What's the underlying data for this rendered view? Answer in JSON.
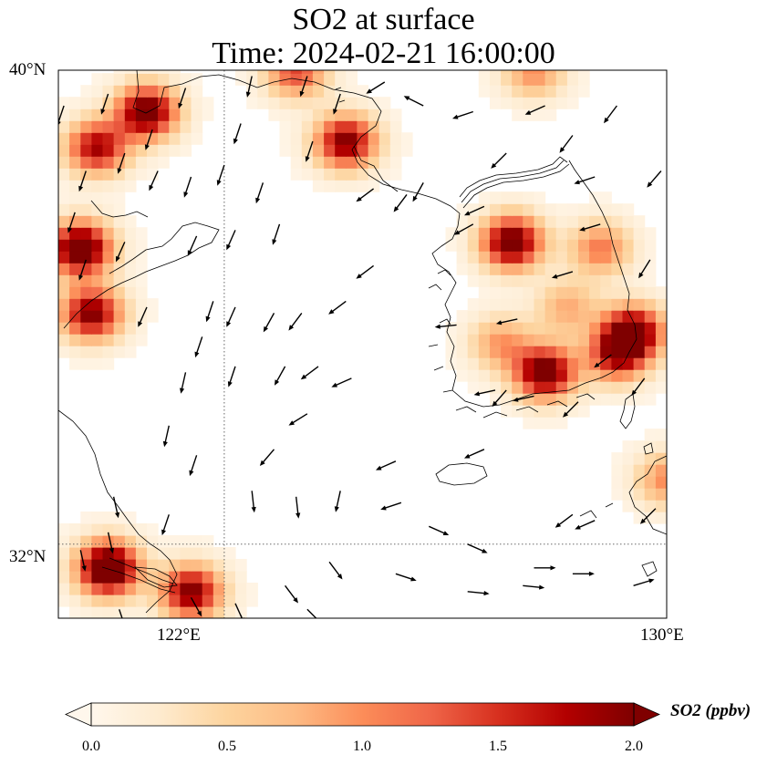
{
  "title": {
    "line1": "SO2 at surface",
    "line2": "Time: 2024-02-21 16:00:00"
  },
  "map": {
    "extent": {
      "lon_min": 119.0,
      "lon_max": 130.0,
      "lat_min": 30.75,
      "lat_max": 40.0
    },
    "lat_labels": [
      {
        "value": 40,
        "text": "40°N"
      },
      {
        "value": 32,
        "text": "32°N"
      }
    ],
    "lon_labels": [
      {
        "value": 122,
        "text": "122°E"
      },
      {
        "value": 130,
        "text": "130°E"
      }
    ],
    "gridlines": {
      "lon": [
        122
      ],
      "lat": [
        32
      ],
      "style": "dotted"
    },
    "field": "SO2 concentration (ppbv)",
    "colormap": "OrRd",
    "hotspots": [
      {
        "lon": 120.5,
        "lat": 39.2,
        "peak": 2.2
      },
      {
        "lon": 119.6,
        "lat": 38.6,
        "peak": 1.8
      },
      {
        "lon": 119.3,
        "lat": 36.9,
        "peak": 2.4
      },
      {
        "lon": 119.5,
        "lat": 35.8,
        "peak": 2.0
      },
      {
        "lon": 119.8,
        "lat": 31.5,
        "peak": 2.6
      },
      {
        "lon": 121.3,
        "lat": 31.1,
        "peak": 2.0
      },
      {
        "lon": 123.2,
        "lat": 39.9,
        "peak": 1.4
      },
      {
        "lon": 124.1,
        "lat": 38.7,
        "peak": 2.0
      },
      {
        "lon": 127.1,
        "lat": 37.0,
        "peak": 2.2
      },
      {
        "lon": 128.7,
        "lat": 36.9,
        "peak": 1.1
      },
      {
        "lon": 128.1,
        "lat": 35.9,
        "peak": 0.8
      },
      {
        "lon": 129.3,
        "lat": 35.5,
        "peak": 2.0
      },
      {
        "lon": 129.0,
        "lat": 35.1,
        "peak": 1.6
      },
      {
        "lon": 127.7,
        "lat": 34.8,
        "peak": 2.2
      },
      {
        "lon": 129.9,
        "lat": 33.0,
        "peak": 1.0
      },
      {
        "lon": 127.5,
        "lat": 39.9,
        "peak": 1.0
      },
      {
        "lon": 126.9,
        "lat": 35.3,
        "peak": 0.9
      }
    ],
    "wind_vectors": [
      [
        120.7,
        39.0,
        -0.3,
        -0.9
      ],
      [
        121.4,
        38.2,
        -0.3,
        -0.9
      ],
      [
        121.5,
        37.2,
        -0.4,
        -0.9
      ],
      [
        120.2,
        37.1,
        -0.4,
        -0.9
      ],
      [
        122.2,
        36.0,
        -0.4,
        -0.9
      ],
      [
        122.9,
        35.9,
        -0.5,
        -0.9
      ],
      [
        123.4,
        35.9,
        -0.6,
        -0.8
      ],
      [
        121.6,
        35.5,
        -0.3,
        -0.9
      ],
      [
        121.3,
        34.9,
        -0.2,
        -0.9
      ],
      [
        122.2,
        35.0,
        -0.3,
        -0.9
      ],
      [
        123.1,
        35.0,
        -0.5,
        -0.9
      ],
      [
        124.3,
        34.8,
        -0.9,
        -0.4
      ],
      [
        121.0,
        34.0,
        -0.2,
        -0.9
      ],
      [
        122.9,
        33.6,
        -0.6,
        -0.7
      ],
      [
        123.5,
        34.2,
        -0.8,
        -0.5
      ],
      [
        125.1,
        33.4,
        -0.9,
        -0.4
      ],
      [
        126.7,
        33.6,
        -0.9,
        -0.4
      ],
      [
        125.2,
        32.7,
        -0.9,
        -0.3
      ],
      [
        122.5,
        32.9,
        0.1,
        -0.9
      ],
      [
        123.3,
        32.8,
        0.1,
        -0.9
      ],
      [
        124.1,
        32.9,
        -0.2,
        -0.9
      ],
      [
        121.0,
        32.5,
        -0.3,
        -0.9
      ],
      [
        123.9,
        31.7,
        0.6,
        -0.8
      ],
      [
        125.7,
        32.3,
        0.9,
        -0.4
      ],
      [
        126.4,
        32.0,
        0.9,
        -0.4
      ],
      [
        125.1,
        31.5,
        0.9,
        -0.3
      ],
      [
        126.4,
        31.2,
        1.0,
        -0.1
      ],
      [
        127.4,
        31.3,
        1.0,
        -0.1
      ],
      [
        127.6,
        31.6,
        1.0,
        0.0
      ],
      [
        128.3,
        31.5,
        1.0,
        0.0
      ],
      [
        129.4,
        31.3,
        1.0,
        0.3
      ],
      [
        128.3,
        32.5,
        -0.8,
        -0.6
      ],
      [
        128.7,
        32.4,
        -0.9,
        -0.4
      ],
      [
        129.8,
        32.6,
        -0.7,
        -0.7
      ],
      [
        128.3,
        36.6,
        -1.0,
        -0.3
      ],
      [
        128.3,
        38.9,
        -0.6,
        -0.8
      ],
      [
        129.1,
        39.4,
        -0.6,
        -0.8
      ],
      [
        128.7,
        38.2,
        -0.9,
        -0.3
      ],
      [
        129.9,
        38.3,
        -0.6,
        -0.7
      ],
      [
        128.8,
        37.4,
        -1.0,
        -0.3
      ],
      [
        129.7,
        36.8,
        -0.5,
        -0.8
      ],
      [
        127.1,
        38.6,
        -0.7,
        -0.7
      ],
      [
        126.7,
        37.7,
        -0.9,
        -0.4
      ],
      [
        126.5,
        37.4,
        -0.9,
        -0.5
      ],
      [
        126.2,
        35.7,
        -1.0,
        -0.1
      ],
      [
        127.3,
        35.8,
        -0.9,
        -0.2
      ],
      [
        129.0,
        35.2,
        -0.8,
        -0.6
      ],
      [
        129.6,
        34.8,
        -0.6,
        -0.8
      ],
      [
        127.1,
        34.6,
        -0.6,
        -0.7
      ],
      [
        126.9,
        34.6,
        -0.9,
        -0.2
      ],
      [
        127.6,
        34.5,
        -0.9,
        -0.2
      ],
      [
        128.4,
        34.4,
        -0.7,
        -0.7
      ],
      [
        125.3,
        37.9,
        -0.6,
        -0.8
      ],
      [
        124.7,
        38.0,
        -0.8,
        -0.6
      ],
      [
        125.6,
        38.1,
        -0.5,
        -0.9
      ],
      [
        124.1,
        39.6,
        -0.3,
        -0.9
      ],
      [
        123.5,
        39.9,
        -0.3,
        -0.9
      ],
      [
        125.6,
        39.4,
        -0.8,
        0.4
      ],
      [
        126.5,
        39.3,
        -0.9,
        -0.3
      ],
      [
        127.8,
        39.4,
        -0.9,
        -0.4
      ],
      [
        124.7,
        36.7,
        -0.8,
        -0.6
      ],
      [
        124.2,
        36.1,
        -0.8,
        -0.6
      ],
      [
        123.7,
        35.0,
        -0.8,
        -0.6
      ],
      [
        121.8,
        36.1,
        -0.3,
        -0.9
      ],
      [
        120.8,
        38.3,
        -0.4,
        -0.9
      ],
      [
        120.2,
        38.6,
        -0.3,
        -0.9
      ],
      [
        122.2,
        37.3,
        -0.4,
        -0.9
      ],
      [
        123.0,
        37.4,
        -0.3,
        -0.9
      ],
      [
        122.0,
        38.4,
        -0.3,
        -0.9
      ],
      [
        122.7,
        38.1,
        -0.3,
        -0.9
      ],
      [
        122.3,
        39.1,
        -0.3,
        -0.9
      ],
      [
        120.6,
        36.0,
        -0.4,
        -0.9
      ],
      [
        119.5,
        38.3,
        -0.3,
        -0.9
      ],
      [
        119.3,
        37.6,
        -0.3,
        -0.9
      ],
      [
        119.5,
        36.8,
        -0.3,
        -0.9
      ],
      [
        121.4,
        31.1,
        0.5,
        -0.9
      ],
      [
        122.2,
        31.0,
        0.4,
        -0.9
      ],
      [
        123.1,
        31.3,
        0.6,
        -0.8
      ],
      [
        123.5,
        30.9,
        0.7,
        -0.7
      ],
      [
        122.3,
        30.8,
        0.3,
        -0.9
      ],
      [
        120.1,
        30.9,
        0.3,
        -0.9
      ],
      [
        119.4,
        31.9,
        0.2,
        -0.9
      ],
      [
        119.9,
        32.2,
        0.2,
        -0.9
      ],
      [
        120.0,
        32.8,
        0.2,
        -0.9
      ],
      [
        121.5,
        33.5,
        -0.3,
        -0.9
      ],
      [
        124.9,
        39.8,
        -0.8,
        -0.5
      ],
      [
        119.9,
        39.6,
        -0.3,
        -0.9
      ],
      [
        119.1,
        39.4,
        -0.3,
        -0.9
      ],
      [
        121.3,
        39.7,
        -0.3,
        -0.9
      ],
      [
        122.5,
        39.9,
        -0.2,
        -0.9
      ],
      [
        123.6,
        38.8,
        -0.3,
        -0.9
      ]
    ]
  },
  "colorbar": {
    "ticks": [
      {
        "value": 0.0,
        "text": "0.0"
      },
      {
        "value": 0.5,
        "text": "0.5"
      },
      {
        "value": 1.0,
        "text": "1.0"
      },
      {
        "value": 1.5,
        "text": "1.5"
      },
      {
        "value": 2.0,
        "text": "2.0"
      }
    ],
    "vmin": 0.0,
    "vmax": 2.0,
    "extend": "both",
    "label": "SO2 (ppbv)"
  }
}
